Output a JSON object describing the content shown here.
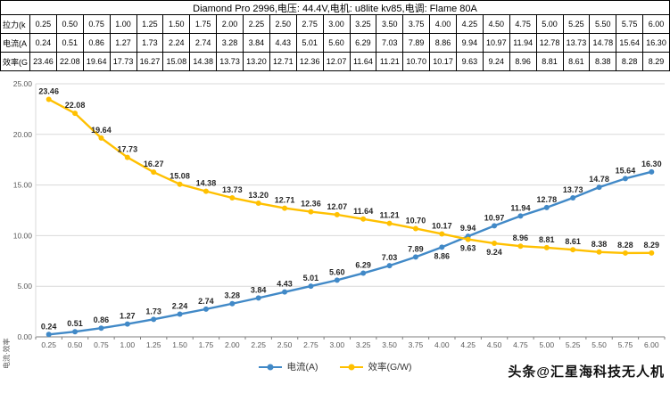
{
  "title": "Diamond Pro 2996,电压: 44.4V,电机: u8lite kv85,电调: Flame 80A",
  "table": {
    "rows": [
      {
        "header": "拉力(k",
        "values": [
          "0.25",
          "0.50",
          "0.75",
          "1.00",
          "1.25",
          "1.50",
          "1.75",
          "2.00",
          "2.25",
          "2.50",
          "2.75",
          "3.00",
          "3.25",
          "3.50",
          "3.75",
          "4.00",
          "4.25",
          "4.50",
          "4.75",
          "5.00",
          "5.25",
          "5.50",
          "5.75",
          "6.00"
        ]
      },
      {
        "header": "电流(A",
        "values": [
          "0.24",
          "0.51",
          "0.86",
          "1.27",
          "1.73",
          "2.24",
          "2.74",
          "3.28",
          "3.84",
          "4.43",
          "5.01",
          "5.60",
          "6.29",
          "7.03",
          "7.89",
          "8.86",
          "9.94",
          "10.97",
          "11.94",
          "12.78",
          "13.73",
          "14.78",
          "15.64",
          "16.30"
        ]
      },
      {
        "header": "效率(G",
        "values": [
          "23.46",
          "22.08",
          "19.64",
          "17.73",
          "16.27",
          "15.08",
          "14.38",
          "13.73",
          "13.20",
          "12.71",
          "12.36",
          "12.07",
          "11.64",
          "11.21",
          "10.70",
          "10.17",
          "9.63",
          "9.24",
          "8.96",
          "8.81",
          "8.61",
          "8.38",
          "8.28",
          "8.29"
        ]
      }
    ]
  },
  "chart_data": {
    "type": "line",
    "title": "Diamond Pro 2996,电压: 44.4V,电机: u8lite kv85,电调: Flame 80A",
    "categories": [
      "0.25",
      "0.50",
      "0.75",
      "1.00",
      "1.25",
      "1.50",
      "1.75",
      "2.00",
      "2.25",
      "2.50",
      "2.75",
      "3.00",
      "3.25",
      "3.50",
      "3.75",
      "4.00",
      "4.25",
      "4.50",
      "4.75",
      "5.00",
      "5.25",
      "5.50",
      "5.75",
      "6.00"
    ],
    "series": [
      {
        "name": "电流(A)",
        "color": "#4189C7",
        "values": [
          0.24,
          0.51,
          0.86,
          1.27,
          1.73,
          2.24,
          2.74,
          3.28,
          3.84,
          4.43,
          5.01,
          5.6,
          6.29,
          7.03,
          7.89,
          8.86,
          9.94,
          10.97,
          11.94,
          12.78,
          13.73,
          14.78,
          15.64,
          16.3
        ]
      },
      {
        "name": "效率(G/W)",
        "color": "#FFC000",
        "values": [
          23.46,
          22.08,
          19.64,
          17.73,
          16.27,
          15.08,
          14.38,
          13.73,
          13.2,
          12.71,
          12.36,
          12.07,
          11.64,
          11.21,
          10.7,
          10.17,
          9.63,
          9.24,
          8.96,
          8.81,
          8.61,
          8.38,
          8.28,
          8.29
        ]
      }
    ],
    "ylim": [
      0,
      25
    ],
    "ytick_step": 5,
    "yticks": [
      "0.00",
      "5.00",
      "10.00",
      "15.00",
      "20.00",
      "25.00"
    ],
    "grid": true,
    "legend_position": "bottom",
    "ylabel": "电流·效率"
  },
  "watermark": "头条@汇星海科技无人机",
  "colors": {
    "grid": "#d9d9d9",
    "axis": "#7f7f7f",
    "tick_text": "#595959",
    "label_text": "#262626",
    "border": "#000000"
  }
}
